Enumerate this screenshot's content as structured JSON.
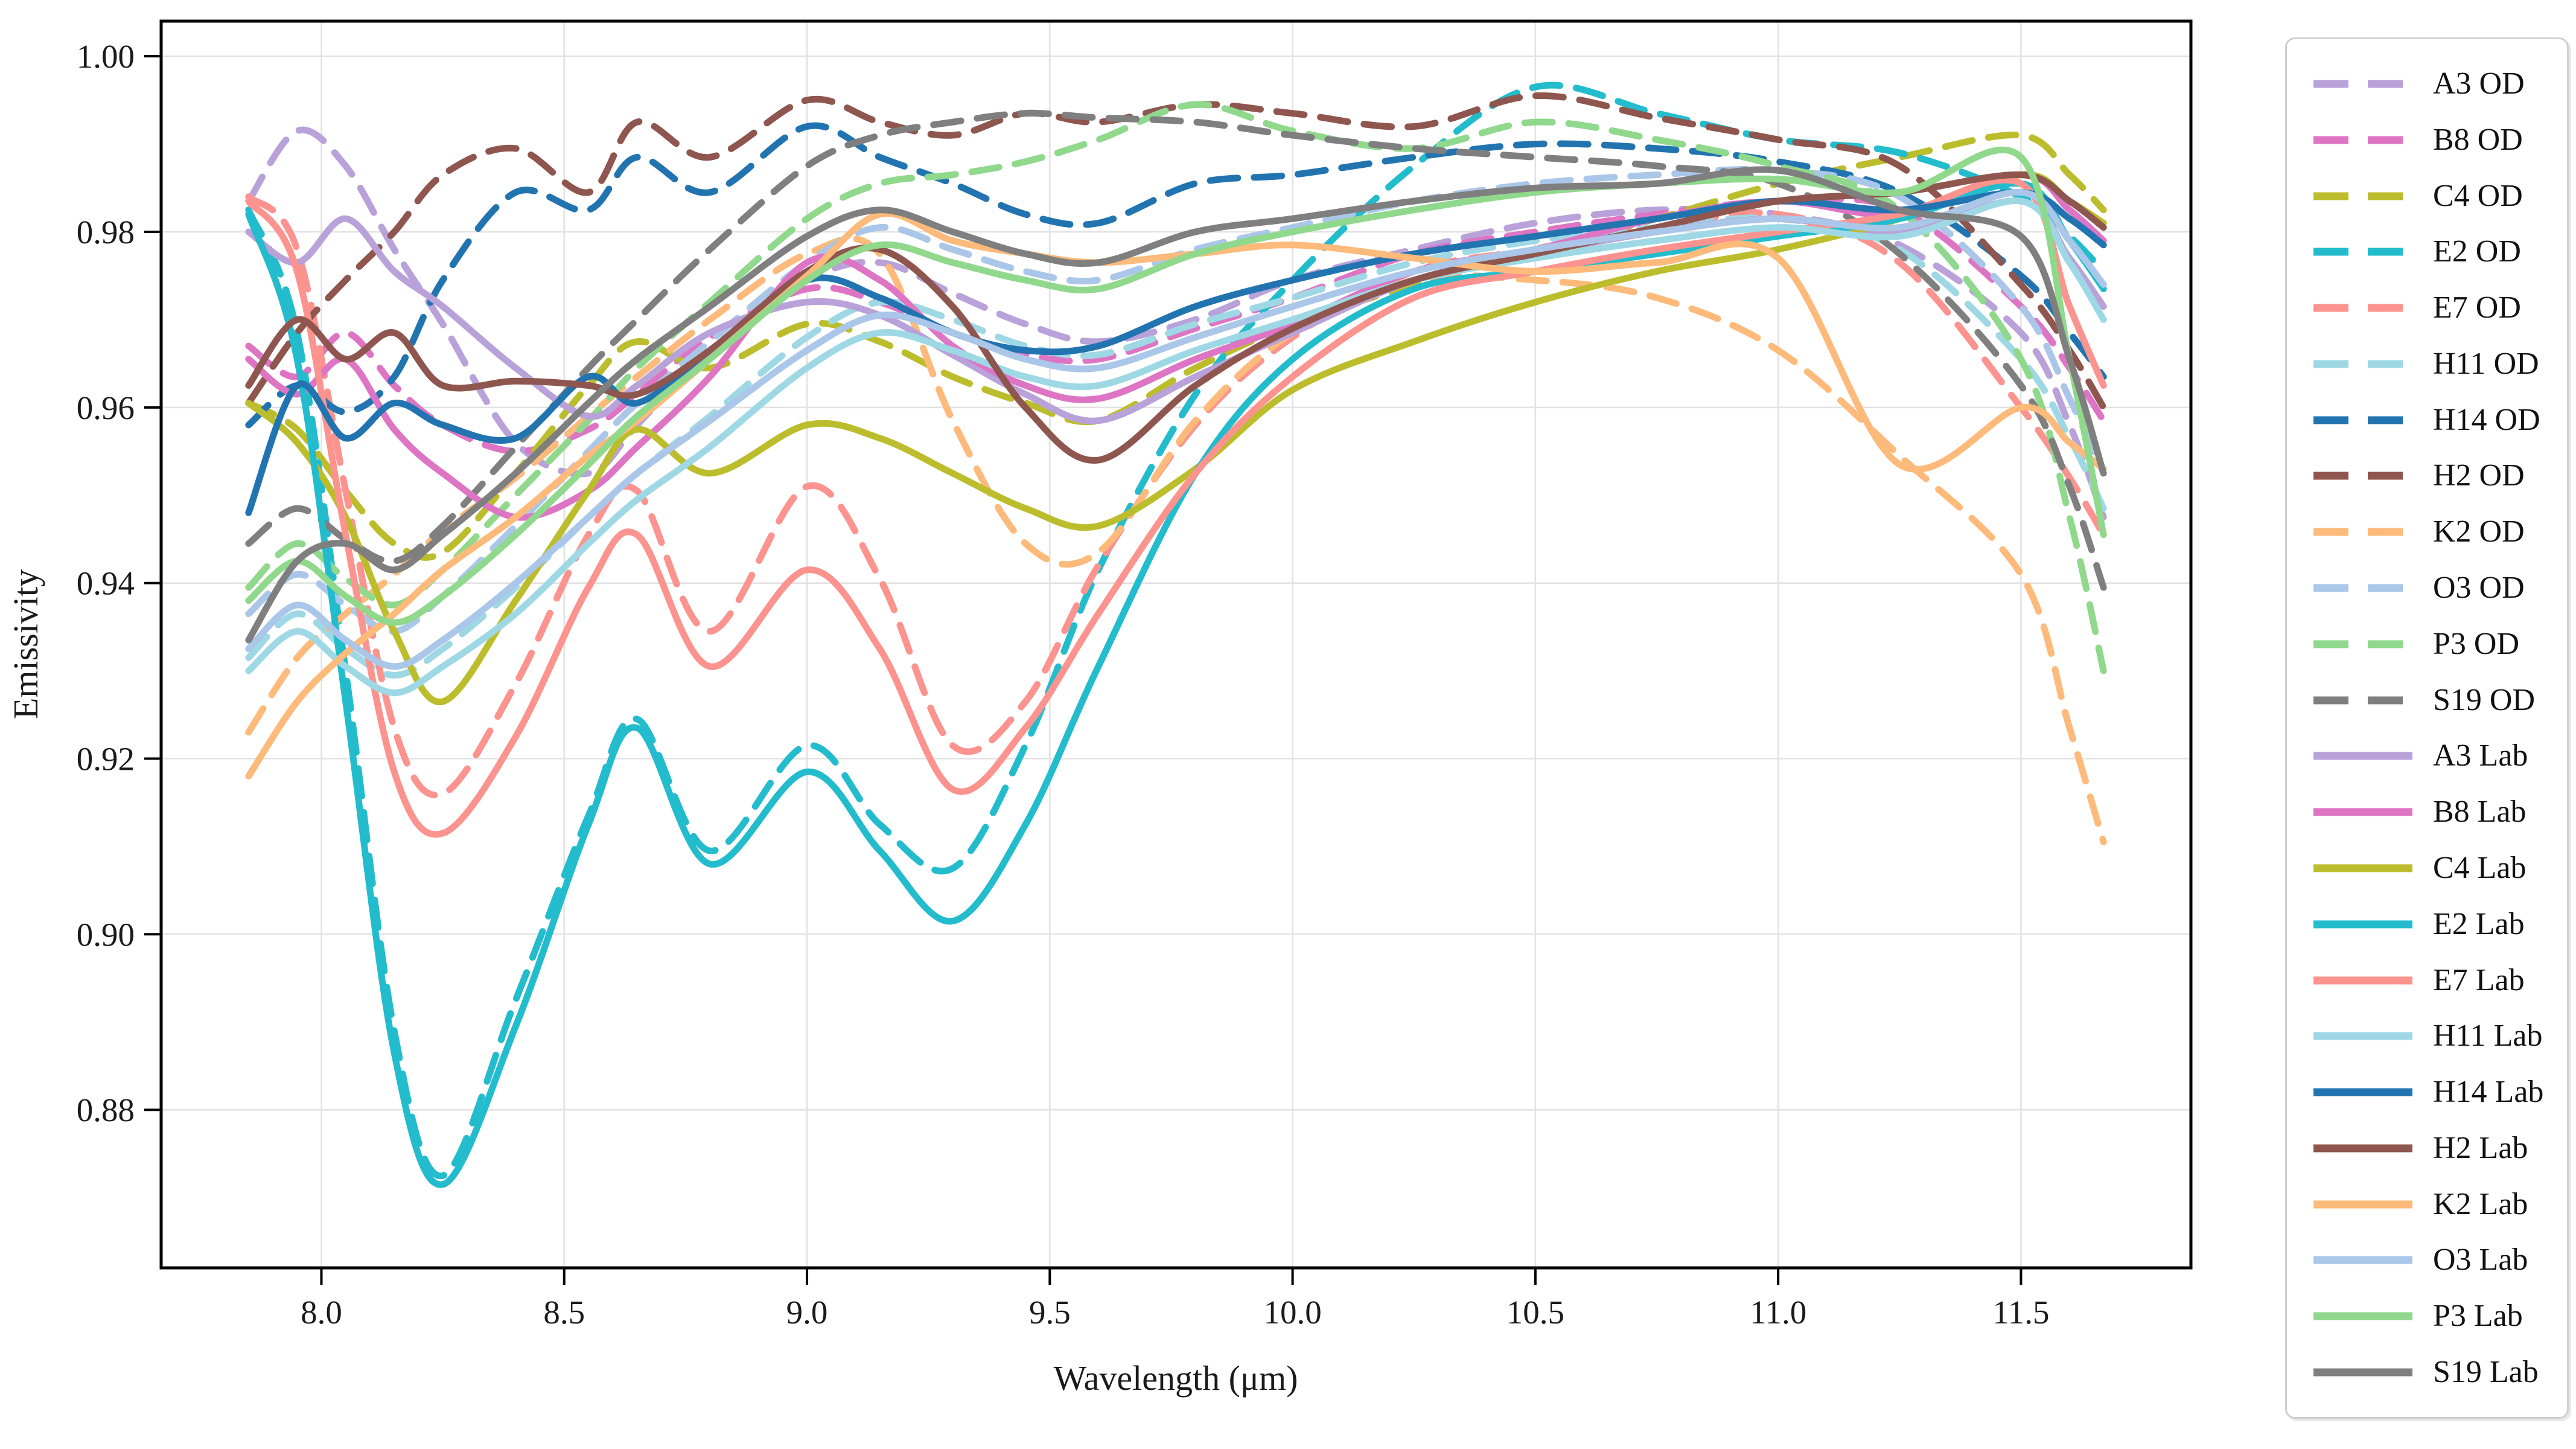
{
  "figure": {
    "title": "",
    "background": "#ffffff",
    "grid_color": "#e2e2e2",
    "spine_color": "#000000"
  },
  "chart_data": {
    "type": "line",
    "title": "",
    "xlabel": "Wavelength (μm)",
    "ylabel": "Emissivity",
    "xlim": [
      7.67,
      11.85
    ],
    "ylim": [
      0.862,
      1.004
    ],
    "grid": true,
    "legend_position": "outside-right",
    "xticks": [
      8.0,
      8.5,
      9.0,
      9.5,
      10.0,
      10.5,
      11.0,
      11.5
    ],
    "xtick_labels": [
      "8.0",
      "8.5",
      "9.0",
      "9.5",
      "10.0",
      "10.5",
      "11.0",
      "11.5"
    ],
    "yticks": [
      0.88,
      0.9,
      0.92,
      0.94,
      0.96,
      0.98,
      1.0
    ],
    "ytick_labels": [
      "0.88",
      "0.90",
      "0.92",
      "0.94",
      "0.96",
      "0.98",
      "1.00"
    ],
    "x": [
      7.85,
      7.95,
      8.05,
      8.15,
      8.25,
      8.4,
      8.55,
      8.65,
      8.8,
      9.0,
      9.15,
      9.3,
      9.45,
      9.6,
      9.8,
      10.0,
      10.25,
      10.5,
      10.75,
      11.0,
      11.25,
      11.5,
      11.6,
      11.67
    ],
    "series": [
      {
        "name": "A3 OD",
        "color": "#b9a1d9",
        "style": "dashed",
        "values": [
          0.9835,
          0.9915,
          0.9875,
          0.978,
          0.9695,
          0.956,
          0.9525,
          0.958,
          0.9665,
          0.9745,
          0.9765,
          0.973,
          0.9695,
          0.9675,
          0.97,
          0.9745,
          0.978,
          0.981,
          0.9825,
          0.982,
          0.9785,
          0.9685,
          0.958,
          0.9475
        ]
      },
      {
        "name": "B8 OD",
        "color": "#de74c4",
        "style": "dashed",
        "values": [
          0.967,
          0.9635,
          0.9685,
          0.9625,
          0.958,
          0.955,
          0.9575,
          0.9615,
          0.968,
          0.9735,
          0.972,
          0.9685,
          0.966,
          0.9655,
          0.969,
          0.9725,
          0.9775,
          0.98,
          0.982,
          0.9835,
          0.9825,
          0.9715,
          0.9645,
          0.9585
        ]
      },
      {
        "name": "C4 OD",
        "color": "#bcbd2c",
        "style": "dashed",
        "values": [
          0.9605,
          0.9575,
          0.9505,
          0.9445,
          0.9435,
          0.9525,
          0.9625,
          0.9675,
          0.9645,
          0.9695,
          0.9675,
          0.9635,
          0.9605,
          0.9585,
          0.9645,
          0.9695,
          0.974,
          0.978,
          0.9815,
          0.9855,
          0.9885,
          0.991,
          0.9865,
          0.9825
        ]
      },
      {
        "name": "E2 OD",
        "color": "#22bccd",
        "style": "dashed",
        "values": [
          0.9825,
          0.9685,
          0.93,
          0.889,
          0.8725,
          0.8925,
          0.9135,
          0.9245,
          0.9095,
          0.9215,
          0.9125,
          0.9075,
          0.9215,
          0.9415,
          0.9615,
          0.9745,
          0.9875,
          0.9965,
          0.9935,
          0.9905,
          0.989,
          0.984,
          0.9795,
          0.9755
        ]
      },
      {
        "name": "E7 OD",
        "color": "#fc938e",
        "style": "dashed",
        "values": [
          0.984,
          0.978,
          0.9505,
          0.9235,
          0.916,
          0.9285,
          0.9455,
          0.9505,
          0.9345,
          0.951,
          0.9405,
          0.9215,
          0.9265,
          0.942,
          0.958,
          0.968,
          0.9755,
          0.978,
          0.9805,
          0.982,
          0.9765,
          0.96,
          0.952,
          0.9455
        ]
      },
      {
        "name": "H11 OD",
        "color": "#9fd8e5",
        "style": "dashed",
        "values": [
          0.9315,
          0.9365,
          0.9325,
          0.9295,
          0.9325,
          0.9395,
          0.9475,
          0.9525,
          0.959,
          0.968,
          0.972,
          0.97,
          0.967,
          0.966,
          0.9695,
          0.9725,
          0.9765,
          0.979,
          0.9805,
          0.9815,
          0.978,
          0.9655,
          0.9565,
          0.9485
        ]
      },
      {
        "name": "H14 OD",
        "color": "#2274b0",
        "style": "dashed",
        "values": [
          0.958,
          0.9625,
          0.9595,
          0.9635,
          0.9745,
          0.9845,
          0.9825,
          0.9885,
          0.9845,
          0.992,
          0.9885,
          0.9855,
          0.982,
          0.981,
          0.9855,
          0.9865,
          0.9885,
          0.99,
          0.9895,
          0.988,
          0.9845,
          0.975,
          0.9685,
          0.9635
        ]
      },
      {
        "name": "H2 OD",
        "color": "#8e564e",
        "style": "dashed",
        "values": [
          0.9605,
          0.9685,
          0.9745,
          0.98,
          0.9865,
          0.9895,
          0.9845,
          0.9925,
          0.9885,
          0.995,
          0.9925,
          0.991,
          0.9935,
          0.9925,
          0.9945,
          0.9935,
          0.992,
          0.9955,
          0.993,
          0.9905,
          0.9875,
          0.974,
          0.9665,
          0.96
        ]
      },
      {
        "name": "K2 OD",
        "color": "#fdba7a",
        "style": "dashed",
        "values": [
          0.923,
          0.9315,
          0.9365,
          0.941,
          0.946,
          0.952,
          0.959,
          0.9635,
          0.97,
          0.9775,
          0.9775,
          0.9585,
          0.9445,
          0.9435,
          0.9585,
          0.9685,
          0.9745,
          0.9745,
          0.9725,
          0.9665,
          0.9545,
          0.941,
          0.9235,
          0.9105
        ]
      },
      {
        "name": "O3 OD",
        "color": "#aac6e8",
        "style": "dashed",
        "values": [
          0.9365,
          0.941,
          0.9375,
          0.9345,
          0.9385,
          0.9465,
          0.955,
          0.9605,
          0.9675,
          0.9765,
          0.9805,
          0.978,
          0.9755,
          0.9745,
          0.978,
          0.9805,
          0.9835,
          0.9855,
          0.9865,
          0.987,
          0.984,
          0.9715,
          0.961,
          0.9525
        ]
      },
      {
        "name": "P3 OD",
        "color": "#8fd88c",
        "style": "dashed",
        "values": [
          0.9395,
          0.9445,
          0.9405,
          0.9375,
          0.9415,
          0.95,
          0.9585,
          0.9645,
          0.972,
          0.9815,
          0.9855,
          0.9865,
          0.988,
          0.9905,
          0.9945,
          0.9915,
          0.9895,
          0.9925,
          0.9905,
          0.9875,
          0.9825,
          0.9655,
          0.9475,
          0.93
        ]
      },
      {
        "name": "S19 OD",
        "color": "#7f7f7f",
        "style": "dashed",
        "values": [
          0.9445,
          0.9485,
          0.945,
          0.9425,
          0.9465,
          0.9555,
          0.9645,
          0.97,
          0.978,
          0.9875,
          0.991,
          0.9925,
          0.9935,
          0.993,
          0.9925,
          0.991,
          0.9895,
          0.9885,
          0.9875,
          0.9855,
          0.9775,
          0.9625,
          0.951,
          0.9395
        ]
      },
      {
        "name": "A3 Lab",
        "color": "#b9a1d9",
        "style": "solid",
        "values": [
          0.98,
          0.9765,
          0.9815,
          0.9755,
          0.9715,
          0.9645,
          0.959,
          0.9625,
          0.9685,
          0.972,
          0.9705,
          0.966,
          0.9615,
          0.9585,
          0.9635,
          0.9685,
          0.9745,
          0.9775,
          0.98,
          0.9815,
          0.98,
          0.9835,
          0.977,
          0.9715
        ]
      },
      {
        "name": "B8 Lab",
        "color": "#de74c4",
        "style": "solid",
        "values": [
          0.9655,
          0.9615,
          0.9655,
          0.9575,
          0.9525,
          0.9475,
          0.9505,
          0.9555,
          0.9635,
          0.9765,
          0.9745,
          0.967,
          0.9625,
          0.961,
          0.9655,
          0.9695,
          0.9755,
          0.978,
          0.9815,
          0.9835,
          0.982,
          0.9865,
          0.9825,
          0.979
        ]
      },
      {
        "name": "C4 Lab",
        "color": "#bcbd2c",
        "style": "solid",
        "values": [
          0.9605,
          0.956,
          0.9475,
          0.9345,
          0.9265,
          0.938,
          0.9505,
          0.9575,
          0.9525,
          0.958,
          0.9565,
          0.9525,
          0.9485,
          0.9465,
          0.953,
          0.962,
          0.9675,
          0.972,
          0.9755,
          0.978,
          0.9815,
          0.9865,
          0.9835,
          0.981
        ]
      },
      {
        "name": "E2 Lab",
        "color": "#22bccd",
        "style": "solid",
        "values": [
          0.982,
          0.9655,
          0.9265,
          0.8865,
          0.8715,
          0.8895,
          0.9125,
          0.9235,
          0.908,
          0.9185,
          0.9095,
          0.9015,
          0.9125,
          0.9305,
          0.9525,
          0.9655,
          0.9735,
          0.9755,
          0.9775,
          0.9795,
          0.9815,
          0.9855,
          0.979,
          0.9735
        ]
      },
      {
        "name": "E7 Lab",
        "color": "#fc938e",
        "style": "solid",
        "values": [
          0.9835,
          0.9755,
          0.9455,
          0.9185,
          0.9115,
          0.9225,
          0.9395,
          0.9455,
          0.9305,
          0.9415,
          0.9325,
          0.9165,
          0.9235,
          0.9365,
          0.9525,
          0.9635,
          0.9725,
          0.9755,
          0.978,
          0.98,
          0.982,
          0.9855,
          0.9715,
          0.9625
        ]
      },
      {
        "name": "H11 Lab",
        "color": "#9fd8e5",
        "style": "solid",
        "values": [
          0.93,
          0.9345,
          0.9305,
          0.9275,
          0.9305,
          0.9365,
          0.9445,
          0.9495,
          0.9555,
          0.9645,
          0.9685,
          0.9665,
          0.9635,
          0.9625,
          0.9665,
          0.97,
          0.9745,
          0.977,
          0.979,
          0.9805,
          0.9795,
          0.9835,
          0.9765,
          0.97
        ]
      },
      {
        "name": "H14 Lab",
        "color": "#2274b0",
        "style": "solid",
        "values": [
          0.948,
          0.9625,
          0.9565,
          0.9605,
          0.958,
          0.9565,
          0.9635,
          0.9605,
          0.9665,
          0.9745,
          0.9725,
          0.9685,
          0.9665,
          0.967,
          0.9715,
          0.9745,
          0.9775,
          0.9795,
          0.9815,
          0.9835,
          0.9825,
          0.9845,
          0.9815,
          0.9785
        ]
      },
      {
        "name": "H2 Lab",
        "color": "#8e564e",
        "style": "solid",
        "values": [
          0.9625,
          0.97,
          0.9655,
          0.9685,
          0.9625,
          0.963,
          0.9625,
          0.9615,
          0.9665,
          0.9755,
          0.978,
          0.9715,
          0.96,
          0.954,
          0.9625,
          0.969,
          0.9745,
          0.9775,
          0.9805,
          0.9835,
          0.9845,
          0.9865,
          0.9835,
          0.9805
        ]
      },
      {
        "name": "K2 Lab",
        "color": "#fdba7a",
        "style": "solid",
        "values": [
          0.918,
          0.9265,
          0.932,
          0.9365,
          0.9415,
          0.9475,
          0.9545,
          0.9585,
          0.9655,
          0.975,
          0.982,
          0.979,
          0.9775,
          0.9765,
          0.9775,
          0.9785,
          0.977,
          0.9755,
          0.9765,
          0.977,
          0.9535,
          0.96,
          0.956,
          0.953
        ]
      },
      {
        "name": "O3 Lab",
        "color": "#aac6e8",
        "style": "solid",
        "values": [
          0.9325,
          0.9375,
          0.9335,
          0.9305,
          0.9335,
          0.94,
          0.9475,
          0.9525,
          0.9585,
          0.9665,
          0.9705,
          0.9685,
          0.9655,
          0.9645,
          0.968,
          0.9715,
          0.9755,
          0.978,
          0.98,
          0.9815,
          0.9805,
          0.9845,
          0.979,
          0.974
        ]
      },
      {
        "name": "P3 Lab",
        "color": "#8fd88c",
        "style": "solid",
        "values": [
          0.938,
          0.9425,
          0.9385,
          0.9355,
          0.9385,
          0.9455,
          0.9535,
          0.959,
          0.9655,
          0.9745,
          0.9785,
          0.9765,
          0.9745,
          0.9735,
          0.9775,
          0.98,
          0.9825,
          0.9845,
          0.9855,
          0.986,
          0.9845,
          0.9885,
          0.9655,
          0.9455
        ]
      },
      {
        "name": "S19 Lab",
        "color": "#7f7f7f",
        "style": "solid",
        "values": [
          0.9335,
          0.9425,
          0.9445,
          0.9415,
          0.9455,
          0.9525,
          0.9605,
          0.9655,
          0.9715,
          0.9795,
          0.9825,
          0.98,
          0.9775,
          0.9765,
          0.98,
          0.9815,
          0.9835,
          0.985,
          0.9855,
          0.987,
          0.9825,
          0.9795,
          0.9655,
          0.9525
        ]
      }
    ]
  }
}
